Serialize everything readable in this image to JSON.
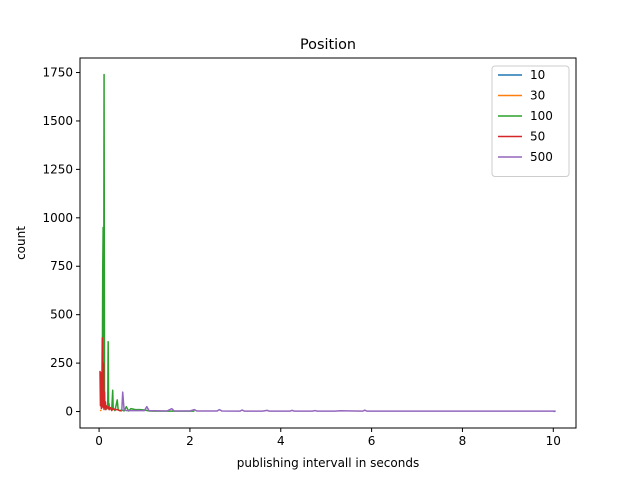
{
  "chart_data": {
    "type": "line",
    "title": "Position",
    "xlabel": "publishing intervall in seconds",
    "ylabel": "count",
    "xlim": [
      -0.42,
      10.5
    ],
    "ylim": [
      -85,
      1825
    ],
    "xticks": [
      0,
      2,
      4,
      6,
      8,
      10
    ],
    "yticks": [
      0,
      250,
      500,
      750,
      1000,
      1250,
      1500,
      1750
    ],
    "grid": false,
    "legend_position": "top-right",
    "series": [
      {
        "name": "10",
        "color": "#1f77b4",
        "x": [
          10.0,
          10.05
        ],
        "y": [
          1,
          1
        ]
      },
      {
        "name": "30",
        "color": "#ff7f0e",
        "x": [
          0.03,
          0.035,
          0.04,
          0.045
        ],
        "y": [
          3,
          6,
          4,
          2
        ]
      },
      {
        "name": "100",
        "color": "#2ca02c",
        "x": [
          0.06,
          0.07,
          0.08,
          0.09,
          0.1,
          0.11,
          0.12,
          0.13,
          0.15,
          0.17,
          0.19,
          0.2,
          0.21,
          0.22,
          0.23,
          0.25,
          0.28,
          0.3,
          0.31,
          0.33,
          0.35,
          0.4,
          0.42,
          0.45,
          0.5,
          0.55,
          0.6,
          0.65,
          0.7,
          0.8,
          0.9,
          1.0,
          1.1,
          1.2,
          1.6,
          2.1
        ],
        "y": [
          30,
          120,
          720,
          950,
          20,
          1740,
          40,
          20,
          10,
          20,
          15,
          360,
          30,
          40,
          10,
          20,
          15,
          110,
          20,
          10,
          5,
          60,
          10,
          5,
          8,
          3,
          25,
          3,
          15,
          10,
          10,
          8,
          3,
          2,
          2,
          2
        ]
      },
      {
        "name": "50",
        "color": "#d62728",
        "x": [
          0.02,
          0.03,
          0.04,
          0.05,
          0.06,
          0.07,
          0.08,
          0.09,
          0.1,
          0.11,
          0.12,
          0.13,
          0.14,
          0.15,
          0.16,
          0.18,
          0.2,
          0.22,
          0.25,
          0.28,
          0.3,
          0.35,
          0.4,
          0.45,
          0.5
        ],
        "y": [
          210,
          30,
          200,
          15,
          60,
          380,
          30,
          20,
          250,
          10,
          100,
          20,
          50,
          10,
          30,
          20,
          25,
          10,
          20,
          5,
          15,
          10,
          10,
          5,
          3
        ]
      },
      {
        "name": "500",
        "color": "#9467bd",
        "x": [
          0.5,
          0.52,
          0.55,
          0.6,
          0.8,
          1.0,
          1.05,
          1.1,
          1.5,
          1.6,
          1.65,
          2.0,
          2.1,
          2.15,
          2.6,
          2.65,
          2.7,
          3.1,
          3.15,
          3.2,
          3.6,
          3.7,
          3.75,
          4.2,
          4.25,
          4.3,
          4.7,
          4.75,
          4.8,
          5.2,
          5.3,
          5.8,
          5.85,
          5.9,
          6.3,
          7.0,
          8.0,
          9.0,
          10.0,
          10.05
        ],
        "y": [
          5,
          100,
          10,
          5,
          5,
          5,
          25,
          5,
          3,
          15,
          3,
          3,
          10,
          3,
          3,
          10,
          3,
          2,
          8,
          2,
          2,
          6,
          2,
          2,
          6,
          2,
          2,
          5,
          2,
          2,
          4,
          2,
          7,
          2,
          2,
          2,
          2,
          2,
          2,
          2
        ]
      }
    ]
  }
}
